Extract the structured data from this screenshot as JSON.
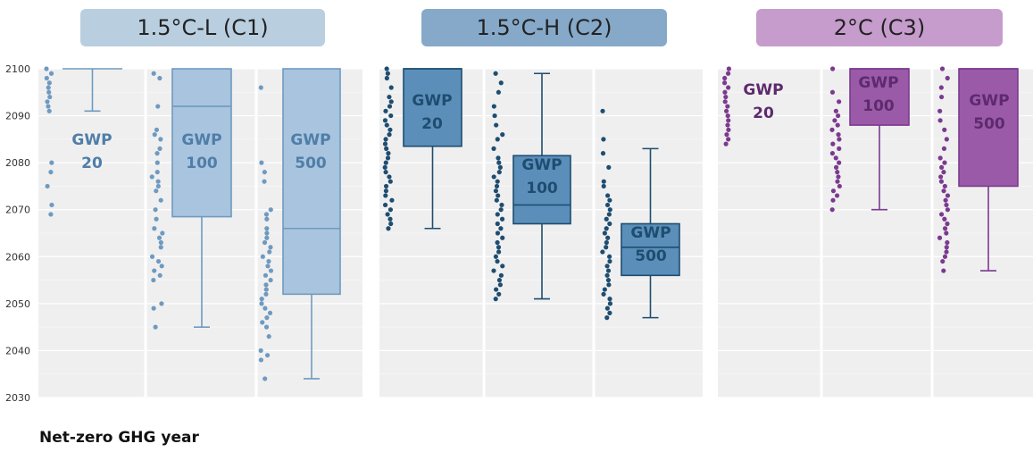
{
  "chart_data": {
    "type": "box",
    "ylabel": "Net-zero GHG year",
    "ylim": [
      2030,
      2100
    ],
    "y_ticks": [
      2030,
      2040,
      2050,
      2060,
      2070,
      2080,
      2090,
      2100
    ],
    "panels": [
      {
        "title": "1.5°C-L (C1)",
        "title_bg": "#b9cfe0",
        "color_fill": "#a9c4de",
        "color_line": "#6f9ac0",
        "color_point": "#6f9ac0",
        "color_label": "#4f7ea8",
        "series": [
          {
            "label_line1": "GWP",
            "label_line2": "20",
            "q1": 2100,
            "median": 2100,
            "q3": 2100,
            "whisker_low": 2091,
            "whisker_high": 2100,
            "points": [
              2100,
              2099,
              2098,
              2097,
              2096,
              2095,
              2094,
              2093,
              2092,
              2091,
              2080,
              2078,
              2075,
              2071,
              2069
            ]
          },
          {
            "label_line1": "GWP",
            "label_line2": "100",
            "q1": 2068.5,
            "median": 2092,
            "q3": 2100,
            "whisker_low": 2045,
            "whisker_high": 2100,
            "points": [
              2099,
              2098,
              2092,
              2087,
              2086,
              2085,
              2083,
              2082,
              2080,
              2078,
              2077,
              2076,
              2075,
              2074,
              2072,
              2070,
              2068,
              2066,
              2065,
              2064,
              2063,
              2062,
              2060,
              2059,
              2058,
              2057,
              2056,
              2055,
              2050,
              2049,
              2045
            ]
          },
          {
            "label_line1": "GWP",
            "label_line2": "500",
            "q1": 2052,
            "median": 2066,
            "q3": 2100,
            "whisker_low": 2034,
            "whisker_high": 2100,
            "points": [
              2096,
              2080,
              2078,
              2076,
              2070,
              2069,
              2068,
              2066,
              2065,
              2064,
              2063,
              2062,
              2061,
              2060,
              2059,
              2058,
              2057,
              2056,
              2055,
              2054,
              2053,
              2052,
              2051,
              2050,
              2049,
              2048,
              2047,
              2046,
              2045,
              2043,
              2040,
              2039,
              2038,
              2034
            ]
          }
        ]
      },
      {
        "title": "1.5°C-H (C2)",
        "title_bg": "#86a9c9",
        "color_fill": "#5b8fba",
        "color_line": "#1e4d70",
        "color_point": "#1e4d70",
        "color_label": "#1e4d70",
        "series": [
          {
            "label_line1": "GWP",
            "label_line2": "20",
            "q1": 2083.5,
            "median": 2100,
            "q3": 2100,
            "whisker_low": 2066,
            "whisker_high": 2100,
            "points": [
              2100,
              2099,
              2098,
              2096,
              2094,
              2093,
              2092,
              2091,
              2090,
              2089,
              2088,
              2087,
              2086,
              2085,
              2084,
              2083,
              2082,
              2081,
              2080,
              2079,
              2078,
              2077,
              2076,
              2075,
              2074,
              2073,
              2072,
              2071,
              2070,
              2069,
              2068,
              2067,
              2066
            ]
          },
          {
            "label_line1": "GWP",
            "label_line2": "100",
            "q1": 2067,
            "median": 2071,
            "q3": 2081.5,
            "whisker_low": 2051,
            "whisker_high": 2099,
            "points": [
              2099,
              2097,
              2095,
              2092,
              2090,
              2088,
              2086,
              2085,
              2083,
              2081,
              2080,
              2079,
              2078,
              2077,
              2076,
              2075,
              2074,
              2073,
              2072,
              2071,
              2070,
              2069,
              2068,
              2067,
              2066,
              2065,
              2064,
              2063,
              2062,
              2061,
              2060,
              2059,
              2058,
              2057,
              2056,
              2055,
              2054,
              2053,
              2052,
              2051
            ]
          },
          {
            "label_line1": "GWP",
            "label_line2": "500",
            "q1": 2056,
            "median": 2062,
            "q3": 2067,
            "whisker_low": 2047,
            "whisker_high": 2083,
            "points": [
              2091,
              2085,
              2082,
              2079,
              2076,
              2075,
              2073,
              2072,
              2071,
              2070,
              2069,
              2068,
              2067,
              2066,
              2065,
              2064,
              2063,
              2062,
              2061,
              2060,
              2059,
              2058,
              2057,
              2056,
              2055,
              2054,
              2053,
              2052,
              2051,
              2050,
              2049,
              2048,
              2047
            ]
          }
        ]
      },
      {
        "title": "2°C (C3)",
        "title_bg": "#c69ccc",
        "color_fill": "#9a5aa8",
        "color_line": "#7b3a8f",
        "color_point": "#7b3a8f",
        "color_label": "#5e2a6e",
        "series": [
          {
            "label_line1": "GWP",
            "label_line2": "20",
            "q1": 2100,
            "median": 2100,
            "q3": 2100,
            "whisker_low": 2100,
            "whisker_high": 2100,
            "points": [
              2100,
              2099,
              2098,
              2097,
              2096,
              2095,
              2094,
              2093,
              2092,
              2091,
              2090,
              2089,
              2088,
              2087,
              2086,
              2085,
              2084
            ]
          },
          {
            "label_line1": "GWP",
            "label_line2": "100",
            "q1": 2088,
            "median": 2100,
            "q3": 2100,
            "whisker_low": 2070,
            "whisker_high": 2100,
            "points": [
              2100,
              2095,
              2093,
              2091,
              2090,
              2089,
              2088,
              2087,
              2086,
              2085,
              2084,
              2083,
              2082,
              2081,
              2080,
              2079,
              2078,
              2077,
              2076,
              2075,
              2074,
              2073,
              2072,
              2070
            ]
          },
          {
            "label_line1": "GWP",
            "label_line2": "500",
            "q1": 2075,
            "median": 2100,
            "q3": 2100,
            "whisker_low": 2057,
            "whisker_high": 2100,
            "points": [
              2100,
              2098,
              2096,
              2094,
              2091,
              2089,
              2087,
              2085,
              2083,
              2081,
              2080,
              2079,
              2078,
              2077,
              2076,
              2075,
              2074,
              2073,
              2072,
              2071,
              2070,
              2069,
              2068,
              2067,
              2066,
              2065,
              2064,
              2063,
              2062,
              2061,
              2060,
              2059,
              2057
            ]
          }
        ]
      }
    ]
  }
}
